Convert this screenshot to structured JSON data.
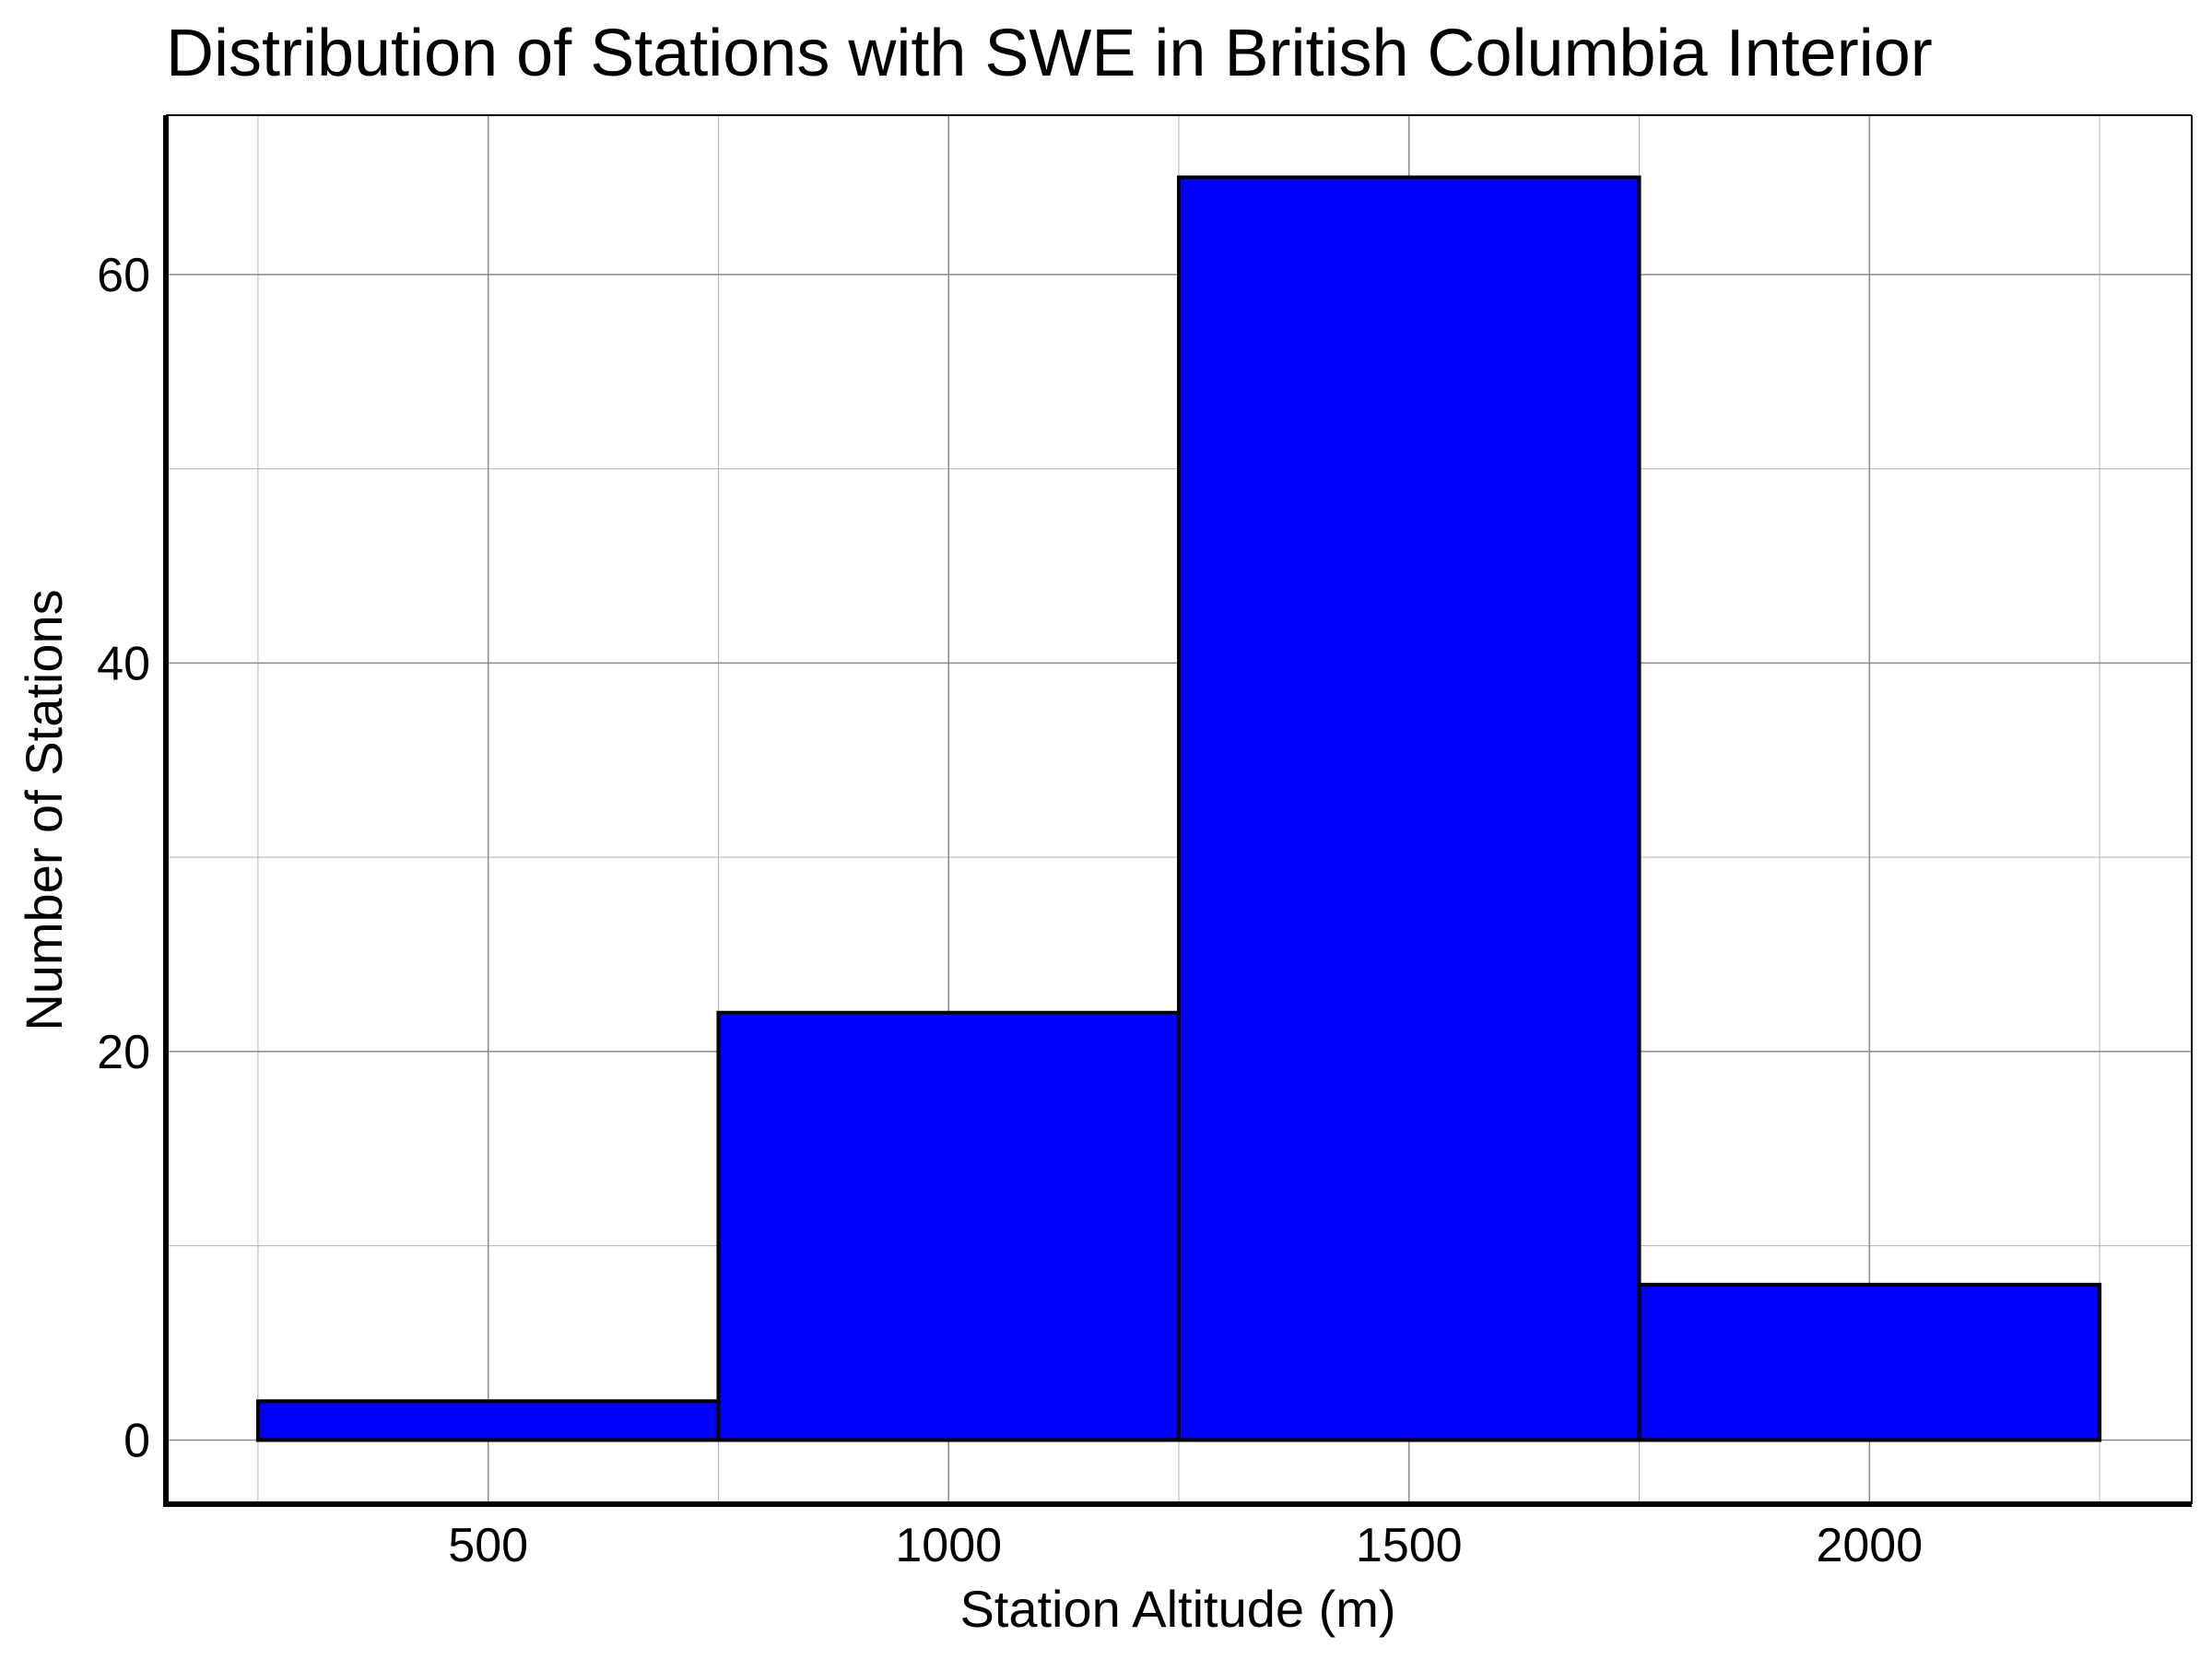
{
  "chart_data": {
    "type": "bar",
    "title": "Distribution of Stations with SWE in British Columbia Interior",
    "xlabel": "Station Altitude (m)",
    "ylabel": "Number of Stations",
    "bins": [
      {
        "start": 250,
        "end": 750,
        "value": 2
      },
      {
        "start": 750,
        "end": 1250,
        "value": 22
      },
      {
        "start": 1250,
        "end": 1750,
        "value": 65
      },
      {
        "start": 1750,
        "end": 2250,
        "value": 8
      }
    ],
    "xlim": [
      150,
      2350
    ],
    "ylim": [
      -3.3,
      68.2
    ],
    "xticks": [
      500,
      1000,
      1500,
      2000
    ],
    "yticks": [
      0,
      20,
      40,
      60
    ],
    "xtick_labels": [
      "500",
      "1000",
      "1500",
      "2000"
    ],
    "ytick_labels": [
      "0",
      "20",
      "40",
      "60"
    ],
    "x_minor_grid": [
      250,
      750,
      1250,
      1750,
      2250
    ],
    "y_minor_grid": [
      10,
      30,
      50
    ],
    "grid": true,
    "colors": {
      "bar_fill": "#0000ff",
      "bar_edge": "#000000",
      "grid": "#b3b3b3"
    }
  }
}
